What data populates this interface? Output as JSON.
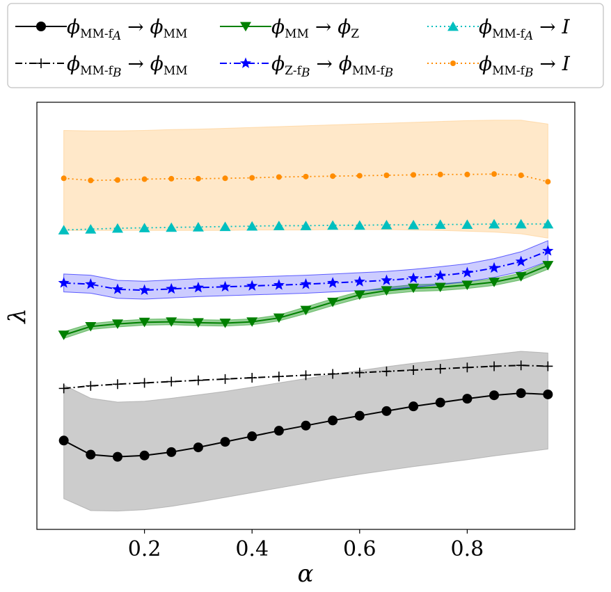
{
  "chart_data": {
    "type": "line",
    "xlabel": "α",
    "ylabel": "λ",
    "xlim": [
      0.0,
      1.0
    ],
    "ylim": [
      0.0,
      1.0
    ],
    "xticks": [
      0.2,
      0.4,
      0.6,
      0.8
    ],
    "xtick_labels": [
      "0.2",
      "0.4",
      "0.6",
      "0.8"
    ],
    "yticks_visible": false,
    "grid": false,
    "legend_placement": "top, above plot, 4 columns",
    "x": [
      0.05,
      0.1,
      0.15,
      0.2,
      0.25,
      0.3,
      0.35,
      0.4,
      0.45,
      0.5,
      0.55,
      0.6,
      0.65,
      0.7,
      0.75,
      0.8,
      0.85,
      0.9,
      0.95
    ],
    "series": [
      {
        "key": "mmfa_mm",
        "color": "#000000",
        "linestyle": "solid",
        "marker": "circle",
        "values": [
          0.208,
          0.175,
          0.17,
          0.173,
          0.181,
          0.192,
          0.205,
          0.218,
          0.231,
          0.243,
          0.255,
          0.266,
          0.277,
          0.288,
          0.297,
          0.306,
          0.314,
          0.319,
          0.316
        ],
        "band_lower": [
          0.072,
          0.044,
          0.043,
          0.046,
          0.054,
          0.064,
          0.075,
          0.086,
          0.097,
          0.108,
          0.119,
          0.129,
          0.138,
          0.147,
          0.155,
          0.163,
          0.172,
          0.18,
          0.188
        ],
        "band_upper": [
          0.338,
          0.307,
          0.298,
          0.3,
          0.307,
          0.315,
          0.323,
          0.333,
          0.343,
          0.353,
          0.363,
          0.372,
          0.381,
          0.389,
          0.396,
          0.403,
          0.41,
          0.417,
          0.413
        ],
        "band_color": "#999999"
      },
      {
        "key": "mmfb_mm",
        "color": "#000000",
        "linestyle": "dashdot",
        "marker": "plus",
        "values": [
          0.33,
          0.336,
          0.34,
          0.343,
          0.346,
          0.349,
          0.352,
          0.355,
          0.358,
          0.361,
          0.364,
          0.367,
          0.37,
          0.373,
          0.376,
          0.379,
          0.382,
          0.384,
          0.382
        ]
      },
      {
        "key": "mm_z",
        "color": "#008000",
        "linestyle": "solid",
        "marker": "triangle-down",
        "values": [
          0.455,
          0.475,
          0.481,
          0.485,
          0.486,
          0.484,
          0.483,
          0.486,
          0.495,
          0.513,
          0.532,
          0.549,
          0.559,
          0.565,
          0.567,
          0.572,
          0.579,
          0.592,
          0.618
        ],
        "band_lower": [
          0.447,
          0.468,
          0.474,
          0.478,
          0.479,
          0.477,
          0.476,
          0.479,
          0.488,
          0.505,
          0.524,
          0.541,
          0.551,
          0.557,
          0.559,
          0.564,
          0.571,
          0.584,
          0.609
        ],
        "band_upper": [
          0.463,
          0.482,
          0.488,
          0.492,
          0.493,
          0.491,
          0.49,
          0.493,
          0.502,
          0.521,
          0.54,
          0.557,
          0.567,
          0.573,
          0.575,
          0.58,
          0.587,
          0.6,
          0.627
        ],
        "band_color": "#2ca02c"
      },
      {
        "key": "zfb_mmfb",
        "color": "#0000ff",
        "linestyle": "dashdot",
        "marker": "star",
        "values": [
          0.577,
          0.574,
          0.562,
          0.56,
          0.563,
          0.566,
          0.568,
          0.57,
          0.572,
          0.574,
          0.577,
          0.58,
          0.583,
          0.588,
          0.594,
          0.601,
          0.612,
          0.627,
          0.652
        ],
        "band_lower": [
          0.556,
          0.553,
          0.541,
          0.539,
          0.542,
          0.545,
          0.547,
          0.549,
          0.551,
          0.553,
          0.556,
          0.559,
          0.562,
          0.567,
          0.573,
          0.58,
          0.59,
          0.604,
          0.628
        ],
        "band_upper": [
          0.598,
          0.595,
          0.583,
          0.581,
          0.584,
          0.587,
          0.589,
          0.591,
          0.593,
          0.595,
          0.598,
          0.601,
          0.604,
          0.609,
          0.615,
          0.622,
          0.634,
          0.65,
          0.676
        ],
        "band_color": "#0000ff"
      },
      {
        "key": "mmfa_i",
        "color": "#00bfbf",
        "linestyle": "dotted",
        "marker": "triangle-up",
        "values": [
          0.701,
          0.703,
          0.705,
          0.706,
          0.707,
          0.708,
          0.709,
          0.71,
          0.711,
          0.711,
          0.712,
          0.712,
          0.713,
          0.713,
          0.714,
          0.714,
          0.715,
          0.715,
          0.715
        ]
      },
      {
        "key": "mmfb_i",
        "color": "#ff8c00",
        "linestyle": "dotted",
        "marker": "circle-small",
        "values": [
          0.822,
          0.817,
          0.818,
          0.82,
          0.821,
          0.821,
          0.822,
          0.823,
          0.825,
          0.826,
          0.827,
          0.828,
          0.829,
          0.83,
          0.831,
          0.831,
          0.832,
          0.829,
          0.814
        ],
        "band_lower": [
          0.7,
          0.7,
          0.7,
          0.7,
          0.7,
          0.7,
          0.7,
          0.701,
          0.701,
          0.701,
          0.702,
          0.702,
          0.702,
          0.701,
          0.7,
          0.698,
          0.696,
          0.692,
          0.682
        ],
        "band_upper": [
          0.934,
          0.933,
          0.933,
          0.934,
          0.936,
          0.937,
          0.939,
          0.941,
          0.943,
          0.945,
          0.947,
          0.949,
          0.951,
          0.953,
          0.955,
          0.957,
          0.958,
          0.958,
          0.949
        ],
        "band_color": "#ffcc88"
      }
    ],
    "legend": [
      {
        "key": "mmfa_mm",
        "from": "ϕ",
        "from_sub": "MM-f",
        "from_sub2": "A",
        "arrow": "→",
        "to": "ϕ",
        "to_sub": "MM",
        "to_sub2": ""
      },
      {
        "key": "mm_z",
        "from": "ϕ",
        "from_sub": "MM",
        "from_sub2": "",
        "arrow": "→",
        "to": "ϕ",
        "to_sub": "Z",
        "to_sub2": ""
      },
      {
        "key": "mmfa_i",
        "from": "ϕ",
        "from_sub": "MM-f",
        "from_sub2": "A",
        "arrow": "→",
        "to": "I",
        "to_sub": "",
        "to_sub2": ""
      },
      {
        "key": "mmfb_mm",
        "from": "ϕ",
        "from_sub": "MM-f",
        "from_sub2": "B",
        "arrow": "→",
        "to": "ϕ",
        "to_sub": "MM",
        "to_sub2": ""
      },
      {
        "key": "zfb_mmfb",
        "from": "ϕ",
        "from_sub": "Z-f",
        "from_sub2": "B",
        "arrow": "→",
        "to": "ϕ",
        "to_sub": "MM-f",
        "to_sub2": "B"
      },
      {
        "key": "mmfb_i",
        "from": "ϕ",
        "from_sub": "MM-f",
        "from_sub2": "B",
        "arrow": "→",
        "to": "I",
        "to_sub": "",
        "to_sub2": ""
      }
    ]
  }
}
